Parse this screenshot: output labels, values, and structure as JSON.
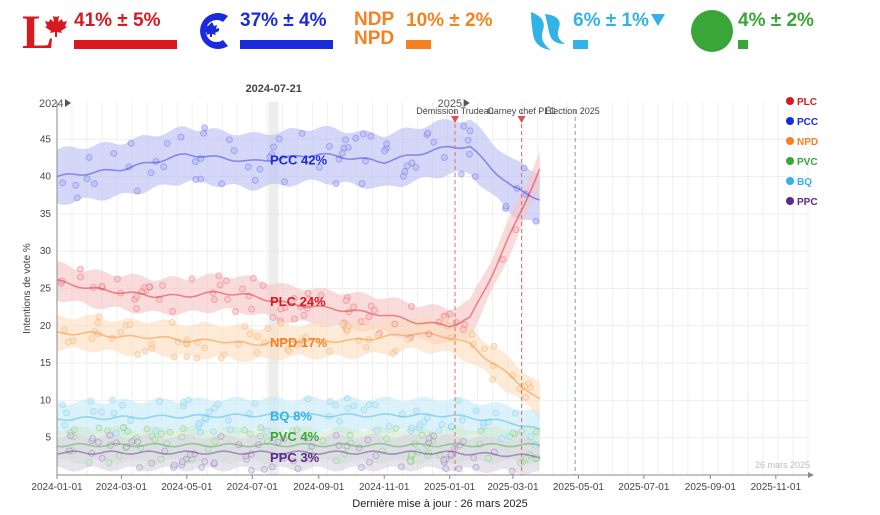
{
  "header": {
    "parties": [
      {
        "id": "plc",
        "logo": "liberal-logo-icon",
        "pct": "41% ± 5%",
        "color": "#d71920",
        "bar": 0.41
      },
      {
        "id": "pcc",
        "logo": "conservative-logo-icon",
        "pct": "37% ± 4%",
        "color": "#1a2bdc",
        "bar": 0.37
      },
      {
        "id": "npd",
        "logo": "ndp-logo-icon",
        "logo_text": "NDP",
        "logo_text2": "NPD",
        "pct": "10% ± 2%",
        "color": "#f58220",
        "bar": 0.1
      },
      {
        "id": "bq",
        "logo": "bloc-logo-icon",
        "pct": "6% ± 1%",
        "color": "#33b2e6",
        "bar": 0.06
      },
      {
        "id": "pvc",
        "logo": "green-logo-icon",
        "pct": "4% ± 2%",
        "color": "#3aa63a",
        "bar": 0.04
      }
    ]
  },
  "footer": {
    "text": "Dernière mise à jour : 26 mars 2025"
  },
  "chart_data": {
    "type": "line",
    "ylabel": "Intentions de vote %",
    "ylim": [
      0,
      50
    ],
    "yticks": [
      5,
      10,
      15,
      20,
      25,
      30,
      35,
      40,
      45
    ],
    "xlim": [
      "2024-01-01",
      "2025-12-01"
    ],
    "xticks": [
      "2024-01-01",
      "2024-03-01",
      "2024-05-01",
      "2024-07-01",
      "2024-09-01",
      "2024-11-01",
      "2025-01-01",
      "2025-03-01",
      "2025-05-01",
      "2025-07-01",
      "2025-09-01",
      "2025-11-01"
    ],
    "year_marks": [
      {
        "date": "2024-01-01",
        "label": "2024"
      },
      {
        "date": "2025-01-01",
        "label": "2025"
      }
    ],
    "hover_date": "2024-07-21",
    "watermark": "26 mars 2025",
    "events": [
      {
        "date": "2025-01-06",
        "label": "Démission Trudeau",
        "color": "#e07070"
      },
      {
        "date": "2025-03-09",
        "label": "Carney chef PLC",
        "color": "#e07070"
      },
      {
        "date": "2025-04-28",
        "label": "Élection 2025",
        "color": "#8899bb"
      }
    ],
    "legend": {
      "position": "top-right",
      "entries": [
        "PLC",
        "PCC",
        "NPD",
        "PVC",
        "BQ",
        "PPC"
      ]
    },
    "series": [
      {
        "name": "PCC",
        "label": "PCC 42%",
        "color": "#1a2bdc",
        "band": "#b9bdf4",
        "points": [
          [
            "2024-01-01",
            40
          ],
          [
            "2024-02-01",
            40.5
          ],
          [
            "2024-03-01",
            41
          ],
          [
            "2024-04-01",
            42
          ],
          [
            "2024-05-01",
            43
          ],
          [
            "2024-06-01",
            42.5
          ],
          [
            "2024-07-01",
            42
          ],
          [
            "2024-08-01",
            42.5
          ],
          [
            "2024-09-01",
            43
          ],
          [
            "2024-10-01",
            42.5
          ],
          [
            "2024-11-01",
            42
          ],
          [
            "2024-12-01",
            43
          ],
          [
            "2025-01-01",
            44
          ],
          [
            "2025-01-20",
            44
          ],
          [
            "2025-02-10",
            41
          ],
          [
            "2025-03-01",
            38.5
          ],
          [
            "2025-03-26",
            37
          ]
        ]
      },
      {
        "name": "PLC",
        "label": "PLC 24%",
        "color": "#d71920",
        "band": "#f6c3c5",
        "points": [
          [
            "2024-01-01",
            26
          ],
          [
            "2024-02-01",
            25
          ],
          [
            "2024-03-01",
            24.5
          ],
          [
            "2024-04-01",
            24
          ],
          [
            "2024-05-01",
            24
          ],
          [
            "2024-06-01",
            24.5
          ],
          [
            "2024-07-01",
            24
          ],
          [
            "2024-08-01",
            23
          ],
          [
            "2024-09-01",
            22.5
          ],
          [
            "2024-10-01",
            22
          ],
          [
            "2024-11-01",
            21.5
          ],
          [
            "2024-12-01",
            20.5
          ],
          [
            "2025-01-01",
            20
          ],
          [
            "2025-01-20",
            21
          ],
          [
            "2025-02-10",
            27
          ],
          [
            "2025-03-01",
            33
          ],
          [
            "2025-03-26",
            41
          ]
        ]
      },
      {
        "name": "NPD",
        "label": "NPD 17%",
        "color": "#f58220",
        "band": "#fbdcbd",
        "points": [
          [
            "2024-01-01",
            19
          ],
          [
            "2024-02-01",
            19
          ],
          [
            "2024-03-01",
            18.5
          ],
          [
            "2024-04-01",
            18.5
          ],
          [
            "2024-05-01",
            18
          ],
          [
            "2024-06-01",
            18
          ],
          [
            "2024-07-01",
            17.5
          ],
          [
            "2024-08-01",
            18
          ],
          [
            "2024-09-01",
            18
          ],
          [
            "2024-10-01",
            18
          ],
          [
            "2024-11-01",
            18.5
          ],
          [
            "2024-12-01",
            19
          ],
          [
            "2025-01-01",
            18.5
          ],
          [
            "2025-01-20",
            17.5
          ],
          [
            "2025-02-10",
            15
          ],
          [
            "2025-03-01",
            13
          ],
          [
            "2025-03-26",
            10
          ]
        ]
      },
      {
        "name": "BQ",
        "label": "BQ 8%",
        "color": "#33b2e6",
        "band": "#c4e9f8",
        "points": [
          [
            "2024-01-01",
            7.5
          ],
          [
            "2024-04-01",
            7.8
          ],
          [
            "2024-07-01",
            8
          ],
          [
            "2024-10-01",
            8
          ],
          [
            "2025-01-01",
            8
          ],
          [
            "2025-03-01",
            7
          ],
          [
            "2025-03-26",
            6
          ]
        ]
      },
      {
        "name": "PVC",
        "label": "PVC 4%",
        "color": "#3aa63a",
        "band": "#cdeacd",
        "points": [
          [
            "2024-01-01",
            4
          ],
          [
            "2024-07-01",
            4
          ],
          [
            "2025-01-01",
            4
          ],
          [
            "2025-03-26",
            4
          ]
        ]
      },
      {
        "name": "PPC",
        "label": "PPC 3%",
        "color": "#5b2a8c",
        "band": "#d9d2e3",
        "points": [
          [
            "2024-01-01",
            3
          ],
          [
            "2024-07-01",
            3
          ],
          [
            "2025-01-01",
            3
          ],
          [
            "2025-03-26",
            2.5
          ]
        ]
      }
    ]
  }
}
